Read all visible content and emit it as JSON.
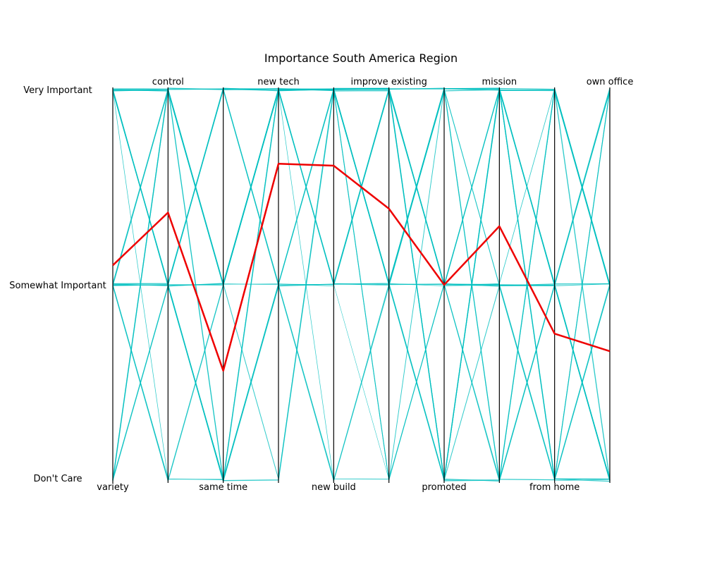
{
  "chart_data": {
    "type": "parallel-coordinates",
    "title": "Importance South America Region",
    "axes": [
      "variety",
      "control",
      "same time",
      "new tech",
      "new build",
      "improve existing",
      "promoted",
      "mission",
      "from home",
      "own office"
    ],
    "levels": [
      "Don't Care",
      "Somewhat Important",
      "Very Important"
    ],
    "y_range": [
      0,
      2
    ],
    "highlight": {
      "name": "",
      "values": [
        1.1,
        1.37,
        0.56,
        1.62,
        1.61,
        1.39,
        1.0,
        1.3,
        0.75,
        0.66
      ],
      "color": "#ee0000"
    },
    "background_color": "#00bfbf",
    "background_series": [
      [
        1,
        1,
        0,
        1,
        1,
        2,
        0,
        0,
        2,
        1
      ],
      [
        2,
        1,
        2,
        2,
        1,
        1,
        2,
        1,
        1,
        0
      ],
      [
        1,
        2,
        1,
        1,
        2,
        1,
        1,
        2,
        0,
        0
      ],
      [
        2,
        2,
        1,
        2,
        2,
        2,
        1,
        2,
        1,
        2
      ],
      [
        0,
        1,
        0,
        2,
        2,
        2,
        0,
        2,
        1,
        1
      ],
      [
        1,
        1,
        2,
        1,
        0,
        1,
        2,
        0,
        1,
        0
      ],
      [
        2,
        2,
        2,
        2,
        2,
        1,
        0,
        2,
        2,
        1
      ],
      [
        1,
        0,
        1,
        2,
        1,
        2,
        1,
        0,
        0,
        2
      ],
      [
        2,
        1,
        1,
        2,
        2,
        0,
        1,
        1,
        0,
        1
      ],
      [
        0,
        2,
        0,
        1,
        1,
        1,
        2,
        2,
        2,
        0
      ],
      [
        1,
        1,
        1,
        0,
        2,
        2,
        0,
        1,
        1,
        1
      ],
      [
        2,
        2,
        0,
        2,
        1,
        0,
        1,
        2,
        0,
        0
      ],
      [
        1,
        0,
        0,
        1,
        2,
        2,
        2,
        0,
        1,
        2
      ],
      [
        2,
        1,
        2,
        2,
        2,
        1,
        1,
        1,
        2,
        1
      ],
      [
        1,
        2,
        1,
        2,
        1,
        2,
        0,
        2,
        0,
        0
      ],
      [
        0,
        1,
        0,
        0,
        2,
        2,
        1,
        1,
        1,
        2
      ],
      [
        2,
        2,
        1,
        2,
        2,
        1,
        2,
        2,
        1,
        0
      ],
      [
        1,
        1,
        2,
        2,
        0,
        1,
        0,
        0,
        2,
        1
      ],
      [
        2,
        0,
        0,
        1,
        1,
        2,
        1,
        2,
        0,
        2
      ],
      [
        1,
        2,
        1,
        2,
        2,
        0,
        2,
        1,
        1,
        0
      ],
      [
        2,
        1,
        0,
        1,
        2,
        2,
        0,
        2,
        1,
        1
      ],
      [
        1,
        1,
        1,
        2,
        1,
        1,
        1,
        1,
        0,
        0
      ],
      [
        0,
        2,
        2,
        1,
        2,
        2,
        0,
        0,
        2,
        1
      ],
      [
        2,
        1,
        0,
        2,
        2,
        1,
        2,
        2,
        1,
        0
      ],
      [
        1,
        0,
        1,
        1,
        1,
        2,
        1,
        1,
        0,
        2
      ],
      [
        2,
        2,
        1,
        2,
        2,
        1,
        0,
        2,
        2,
        1
      ],
      [
        1,
        1,
        0,
        1,
        0,
        0,
        1,
        0,
        1,
        0
      ],
      [
        2,
        1,
        2,
        2,
        2,
        2,
        2,
        2,
        0,
        1
      ]
    ]
  }
}
